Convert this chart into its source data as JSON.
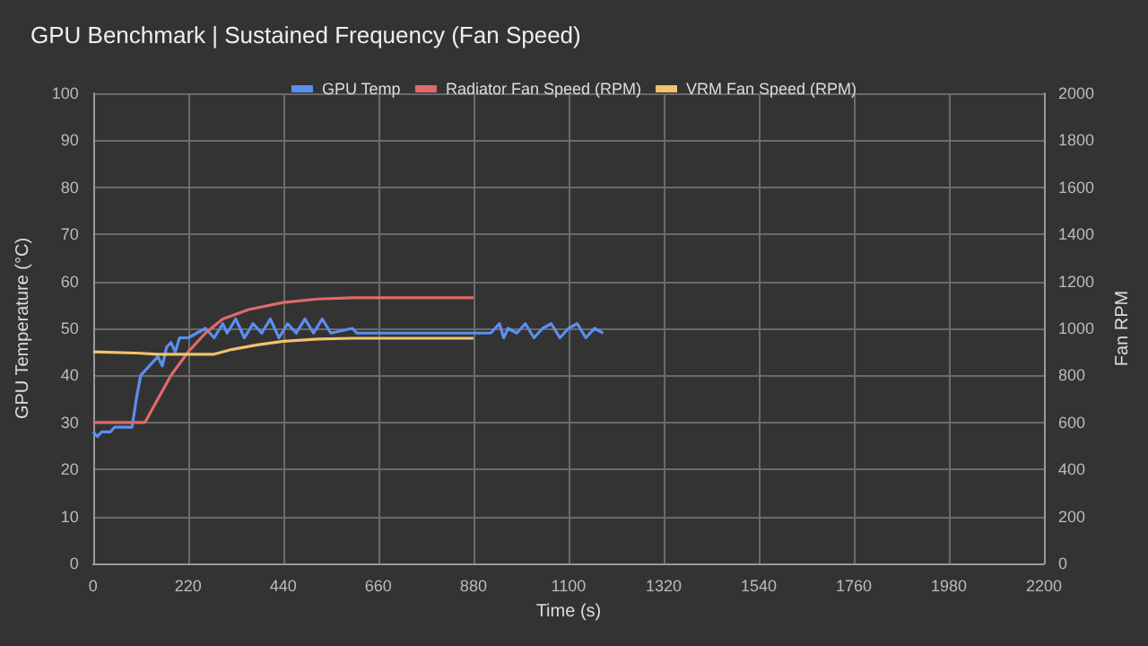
{
  "chart_data": {
    "type": "line",
    "title": "GPU Benchmark | Sustained Frequency (Fan Speed)",
    "xlabel": "Time (s)",
    "ylabel": "GPU Temperature (°C)",
    "y2label": "Fan RPM",
    "xlim": [
      0,
      2200
    ],
    "xticks": [
      0,
      220,
      440,
      660,
      880,
      1100,
      1320,
      1540,
      1760,
      1980,
      2200
    ],
    "ylim": [
      0,
      100
    ],
    "yticks": [
      0,
      10,
      20,
      30,
      40,
      50,
      60,
      70,
      80,
      90,
      100
    ],
    "y2lim": [
      0,
      2000
    ],
    "y2ticks": [
      0,
      200,
      400,
      600,
      800,
      1000,
      1200,
      1400,
      1600,
      1800,
      2000
    ],
    "grid": true,
    "legend": "top",
    "marker": "none",
    "series": [
      {
        "name": "GPU Temp",
        "color": "#5b8ff0",
        "x": [
          0,
          10,
          20,
          40,
          50,
          90,
          100,
          110,
          120,
          140,
          150,
          160,
          170,
          180,
          190,
          200,
          220,
          240,
          260,
          280,
          300,
          310,
          330,
          350,
          370,
          390,
          410,
          430,
          450,
          470,
          490,
          510,
          530,
          550,
          600,
          610,
          700,
          880,
          920,
          940,
          950,
          960,
          980,
          1000,
          1020,
          1040,
          1060,
          1080,
          1100,
          1120,
          1140,
          1160,
          1180
        ],
        "values": [
          28,
          27,
          28,
          28,
          29,
          29,
          35,
          40,
          41,
          43,
          44,
          42,
          46,
          47,
          45,
          48,
          48,
          49,
          50,
          48,
          51,
          49,
          52,
          48,
          51,
          49,
          52,
          48,
          51,
          49,
          52,
          49,
          52,
          49,
          50,
          49,
          49,
          49,
          49,
          51,
          48,
          50,
          49,
          51,
          48,
          50,
          51,
          48,
          50,
          51,
          48,
          50,
          49
        ]
      },
      {
        "name": "Radiator Fan Speed (RPM)",
        "color": "#e06a6a",
        "axis": "y2",
        "x": [
          0,
          120,
          150,
          180,
          220,
          260,
          300,
          360,
          440,
          520,
          600,
          880
        ],
        "values": [
          600,
          600,
          700,
          800,
          900,
          980,
          1040,
          1080,
          1110,
          1125,
          1130,
          1130
        ]
      },
      {
        "name": "VRM Fan Speed (RPM)",
        "color": "#f3c26b",
        "axis": "y2",
        "x": [
          0,
          100,
          150,
          280,
          320,
          380,
          440,
          520,
          600,
          880
        ],
        "values": [
          900,
          895,
          890,
          890,
          910,
          930,
          945,
          955,
          958,
          958
        ]
      }
    ]
  }
}
